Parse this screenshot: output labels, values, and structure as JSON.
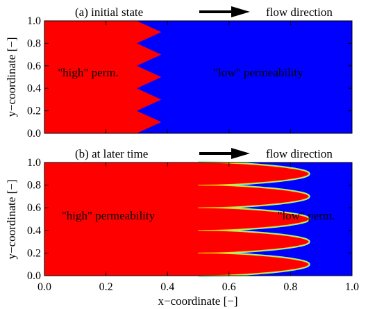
{
  "colors": {
    "high": "#ff0000",
    "low": "#0000ff",
    "arrow": "#000000",
    "axis": "#000000",
    "front_mid": "#5cff80"
  },
  "chart_data": [
    {
      "type": "heatmap",
      "title": "(a) initial state",
      "flow_label": "flow direction",
      "ylabel": "y−coordinate [−]",
      "xlim": [
        0.0,
        1.0
      ],
      "ylim": [
        0.0,
        1.0
      ],
      "yticks": [
        "0.0",
        "0.2",
        "0.4",
        "0.6",
        "0.8",
        "1.0"
      ],
      "regions": [
        {
          "name": "\"high\" perm.",
          "side": "left"
        },
        {
          "name": "\"low\" permeability",
          "side": "right"
        }
      ],
      "front": {
        "kind": "zigzag",
        "x_min": 0.3,
        "x_max": 0.38,
        "periods": 5,
        "y_start_at_max": 0.0
      }
    },
    {
      "type": "heatmap",
      "title": "(b) at later time",
      "flow_label": "flow direction",
      "xlabel": "x−coordinate [−]",
      "ylabel": "y−coordinate [−]",
      "xlim": [
        0.0,
        1.0
      ],
      "ylim": [
        0.0,
        1.0
      ],
      "xticks": [
        "0.0",
        "0.2",
        "0.4",
        "0.6",
        "0.8",
        "1.0"
      ],
      "yticks": [
        "0.0",
        "0.2",
        "0.4",
        "0.6",
        "0.8",
        "1.0"
      ],
      "regions": [
        {
          "name": "\"high\" permeability",
          "side": "left"
        },
        {
          "name": "\"low\" perm.",
          "side": "right"
        }
      ],
      "front": {
        "kind": "fingers",
        "x_base": 0.5,
        "x_tip": 0.86,
        "periods": 5
      }
    }
  ]
}
